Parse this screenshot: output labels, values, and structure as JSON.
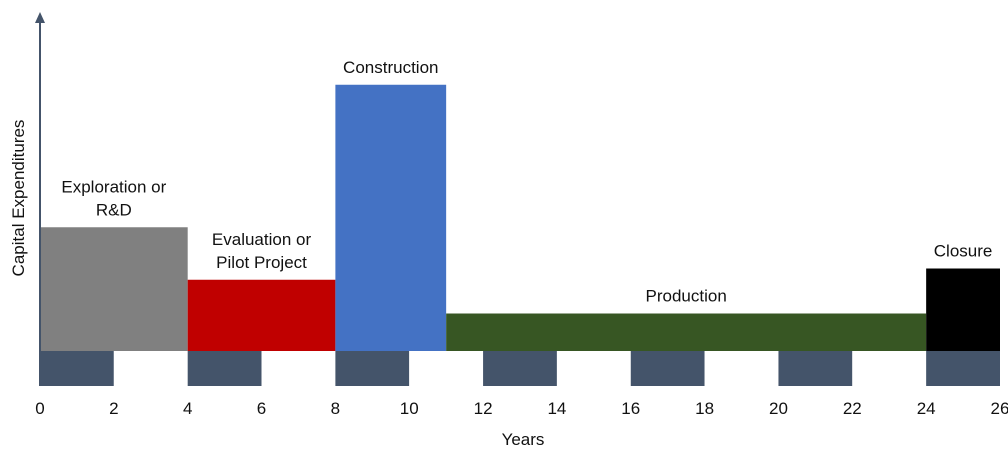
{
  "chart_data": {
    "type": "bar",
    "title": "",
    "xlabel": "Years",
    "ylabel": "Capital Expenditures",
    "xlim": [
      0,
      26
    ],
    "x_ticks": [
      "0",
      "2",
      "4",
      "6",
      "8",
      "10",
      "12",
      "14",
      "16",
      "18",
      "20",
      "22",
      "24",
      "26"
    ],
    "grid": false,
    "legend": "none",
    "bars": [
      {
        "label": "Exploration or\nR&D",
        "x_start": 0,
        "x_end": 4,
        "value": 3.3,
        "color": "#808080"
      },
      {
        "label": "Evaluation or\nPilot Project",
        "x_start": 4,
        "x_end": 8,
        "value": 1.9,
        "color": "#c00000"
      },
      {
        "label": "Construction",
        "x_start": 8,
        "x_end": 11,
        "value": 7.1,
        "color": "#4472c4"
      },
      {
        "label": "Production",
        "x_start": 11,
        "x_end": 24,
        "value": 1.0,
        "color": "#375623"
      },
      {
        "label": "Closure",
        "x_start": 24,
        "x_end": 26,
        "value": 2.2,
        "color": "#000000"
      }
    ],
    "axis_band": {
      "dark": "#44546a",
      "light": "#ffffff",
      "axis_color": "#44546a"
    }
  }
}
